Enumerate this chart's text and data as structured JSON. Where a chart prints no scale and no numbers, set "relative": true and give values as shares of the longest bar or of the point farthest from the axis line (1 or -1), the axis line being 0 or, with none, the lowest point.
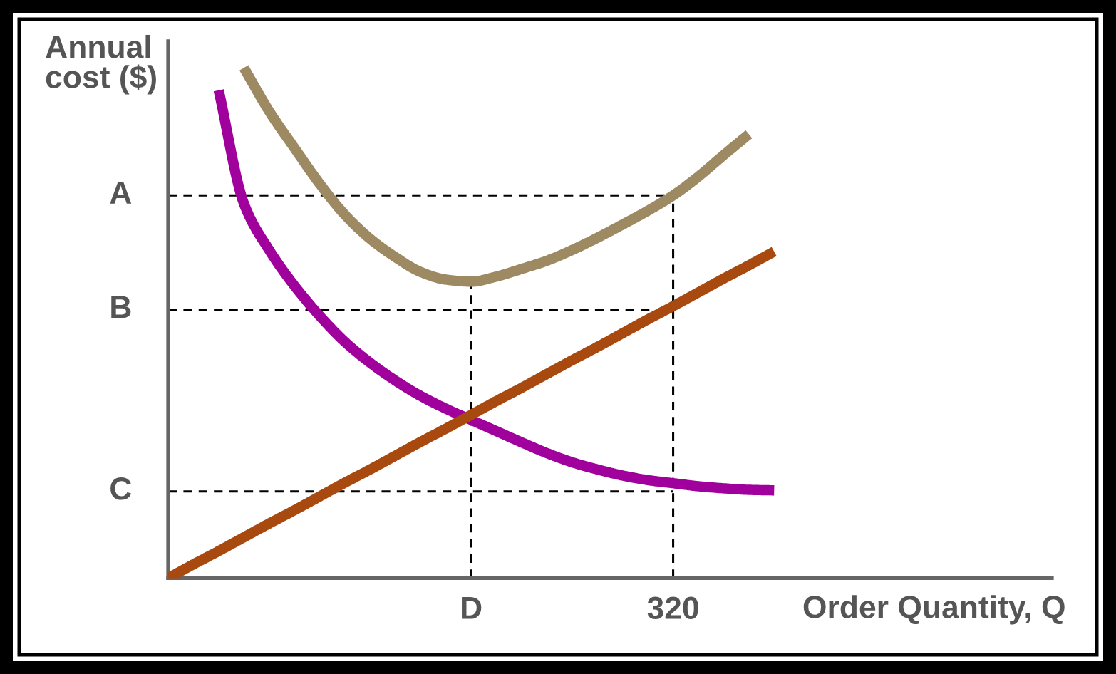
{
  "chart_data": {
    "type": "line",
    "relative": true,
    "xlabel": "Order Quantity, Q",
    "ylabel": "Annual\ncost ($)",
    "categories": [
      null,
      null,
      null,
      null,
      null,
      null,
      null,
      null,
      null,
      null,
      null,
      null,
      "D",
      null,
      null,
      null,
      null,
      null,
      null,
      null,
      "320",
      null,
      null,
      null,
      null,
      null,
      null,
      null,
      null,
      null,
      null,
      null,
      null,
      null,
      null,
      null
    ],
    "series": [
      {
        "color": "#9e8a62",
        "values": [
          null,
          null,
          null,
          1.0,
          0.915,
          0.843,
          0.773,
          0.712,
          0.665,
          0.629,
          0.6,
          0.585,
          0.581,
          0.591,
          0.606,
          0.622,
          0.643,
          0.667,
          0.693,
          0.72,
          0.75,
          0.787,
          0.829,
          0.87,
          null,
          null,
          null,
          null,
          null,
          null,
          null,
          null,
          null,
          null,
          null,
          null
        ]
      },
      {
        "color": "#a0009c",
        "values": [
          null,
          null,
          0.956,
          0.734,
          0.643,
          0.573,
          0.514,
          0.463,
          0.422,
          0.387,
          0.357,
          0.332,
          0.31,
          0.288,
          0.266,
          0.245,
          0.227,
          0.213,
          0.201,
          0.192,
          0.186,
          0.18,
          0.176,
          0.173,
          0.172,
          null,
          null,
          null,
          null,
          null,
          null,
          null,
          null,
          null,
          null,
          null
        ]
      },
      {
        "color": "#a84a10",
        "values": [
          0,
          0.027,
          0.053,
          0.08,
          0.107,
          0.133,
          0.16,
          0.187,
          0.213,
          0.24,
          0.267,
          0.293,
          0.32,
          0.347,
          0.373,
          0.4,
          0.427,
          0.453,
          0.48,
          0.507,
          0.533,
          0.56,
          0.587,
          0.613,
          0.64,
          null,
          null,
          null,
          null,
          null,
          null,
          null,
          null,
          null,
          null,
          null
        ]
      }
    ],
    "ref_lines": [
      {
        "axis": "y",
        "value": 0.75,
        "label": "A",
        "color": "#000000",
        "line_style": "dashed"
      },
      {
        "axis": "y",
        "value": 0.526,
        "label": "B",
        "color": "#000000",
        "line_style": "dashed"
      },
      {
        "axis": "y",
        "value": 0.17,
        "label": "C",
        "color": "#000000",
        "line_style": "dashed"
      },
      {
        "axis": "x",
        "value": "D",
        "color": "#000000",
        "line_style": "dashed"
      },
      {
        "axis": "x",
        "value": "320",
        "color": "#000000",
        "line_style": "dashed"
      }
    ],
    "grid": false,
    "marker": "none",
    "line_style": "solid"
  }
}
